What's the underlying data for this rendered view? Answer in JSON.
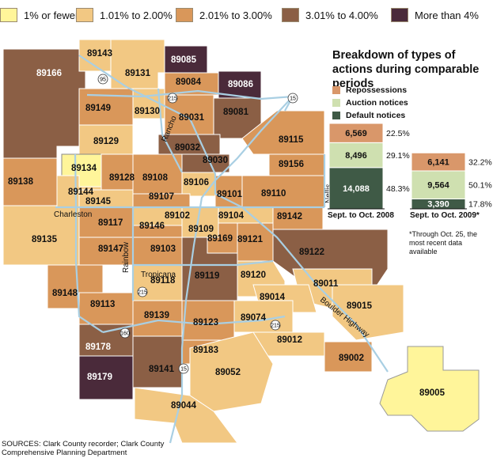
{
  "legend": [
    {
      "label": "1% or fewer",
      "color": "#fff59a"
    },
    {
      "label": "1.01% to 2.00%",
      "color": "#f2c883"
    },
    {
      "label": "2.01% to 3.00%",
      "color": "#d9975a"
    },
    {
      "label": "3.01% to 4.00%",
      "color": "#8b5f45"
    },
    {
      "label": "More than 4%",
      "color": "#4a2a3a"
    }
  ],
  "zip_codes": [
    {
      "zip": "89143",
      "class": "1.01% to 2.00%"
    },
    {
      "zip": "89085",
      "class": "More than 4%"
    },
    {
      "zip": "89166",
      "class": "3.01% to 4.00%"
    },
    {
      "zip": "89131",
      "class": "1.01% to 2.00%"
    },
    {
      "zip": "89084",
      "class": "2.01% to 3.00%"
    },
    {
      "zip": "89086",
      "class": "More than 4%"
    },
    {
      "zip": "89149",
      "class": "2.01% to 3.00%"
    },
    {
      "zip": "89130",
      "class": "1.01% to 2.00%"
    },
    {
      "zip": "89031",
      "class": "2.01% to 3.00%"
    },
    {
      "zip": "89081",
      "class": "3.01% to 4.00%"
    },
    {
      "zip": "89129",
      "class": "1.01% to 2.00%"
    },
    {
      "zip": "89032",
      "class": "3.01% to 4.00%"
    },
    {
      "zip": "89115",
      "class": "2.01% to 3.00%"
    },
    {
      "zip": "89134",
      "class": "1% or fewer"
    },
    {
      "zip": "89030",
      "class": "3.01% to 4.00%"
    },
    {
      "zip": "89156",
      "class": "2.01% to 3.00%"
    },
    {
      "zip": "89138",
      "class": "2.01% to 3.00%"
    },
    {
      "zip": "89144",
      "class": "1.01% to 2.00%"
    },
    {
      "zip": "89128",
      "class": "2.01% to 3.00%"
    },
    {
      "zip": "89108",
      "class": "2.01% to 3.00%"
    },
    {
      "zip": "89106",
      "class": "1.01% to 2.00%"
    },
    {
      "zip": "89110",
      "class": "2.01% to 3.00%"
    },
    {
      "zip": "89107",
      "class": "2.01% to 3.00%"
    },
    {
      "zip": "89101",
      "class": "2.01% to 3.00%"
    },
    {
      "zip": "89145",
      "class": "1.01% to 2.00%"
    },
    {
      "zip": "89102",
      "class": "1.01% to 2.00%"
    },
    {
      "zip": "89104",
      "class": "1.01% to 2.00%"
    },
    {
      "zip": "89142",
      "class": "2.01% to 3.00%"
    },
    {
      "zip": "89117",
      "class": "2.01% to 3.00%"
    },
    {
      "zip": "89146",
      "class": "2.01% to 3.00%"
    },
    {
      "zip": "89109",
      "class": "1.01% to 2.00%"
    },
    {
      "zip": "89169",
      "class": "2.01% to 3.00%"
    },
    {
      "zip": "89121",
      "class": "2.01% to 3.00%"
    },
    {
      "zip": "89135",
      "class": "1.01% to 2.00%"
    },
    {
      "zip": "89147",
      "class": "2.01% to 3.00%"
    },
    {
      "zip": "89103",
      "class": "2.01% to 3.00%"
    },
    {
      "zip": "89122",
      "class": "3.01% to 4.00%"
    },
    {
      "zip": "89119",
      "class": "3.01% to 4.00%"
    },
    {
      "zip": "89120",
      "class": "1.01% to 2.00%"
    },
    {
      "zip": "89118",
      "class": "1.01% to 2.00%"
    },
    {
      "zip": "89011",
      "class": "1.01% to 2.00%"
    },
    {
      "zip": "89148",
      "class": "2.01% to 3.00%"
    },
    {
      "zip": "89014",
      "class": "1.01% to 2.00%"
    },
    {
      "zip": "89015",
      "class": "1.01% to 2.00%"
    },
    {
      "zip": "89113",
      "class": "2.01% to 3.00%"
    },
    {
      "zip": "89139",
      "class": "2.01% to 3.00%"
    },
    {
      "zip": "89123",
      "class": "2.01% to 3.00%"
    },
    {
      "zip": "89074",
      "class": "1.01% to 2.00%"
    },
    {
      "zip": "89012",
      "class": "1.01% to 2.00%"
    },
    {
      "zip": "89178",
      "class": "3.01% to 4.00%"
    },
    {
      "zip": "89183",
      "class": "2.01% to 3.00%"
    },
    {
      "zip": "89002",
      "class": "2.01% to 3.00%"
    },
    {
      "zip": "89141",
      "class": "3.01% to 4.00%"
    },
    {
      "zip": "89052",
      "class": "1.01% to 2.00%"
    },
    {
      "zip": "89179",
      "class": "More than 4%"
    },
    {
      "zip": "89005",
      "class": "1% or fewer"
    },
    {
      "zip": "89044",
      "class": "1.01% to 2.00%"
    }
  ],
  "road_labels": [
    "Rancho",
    "Charleston",
    "Rainbow",
    "Tropicana",
    "Nellis",
    "Boulder Highway"
  ],
  "highway_shields": [
    "95",
    "215",
    "15",
    "215",
    "160",
    "215",
    "15"
  ],
  "chart": {
    "title": "Breakdown of types of actions during comparable periods",
    "legend": [
      {
        "label": "Repossessions",
        "color": "#d9976a"
      },
      {
        "label": "Auction notices",
        "color": "#cfe0b0"
      },
      {
        "label": "Default notices",
        "color": "#3f5a46"
      }
    ],
    "periods": [
      {
        "label": "Sept. to Oct. 2008",
        "values": {
          "repossessions": "6,569",
          "auction": "8,496",
          "default": "14,088"
        },
        "percents": {
          "repossessions": "22.5%",
          "auction": "29.1%",
          "default": "48.3%"
        }
      },
      {
        "label": "Sept. to Oct. 2009*",
        "values": {
          "repossessions": "6,141",
          "auction": "9,564",
          "default": "3,390"
        },
        "percents": {
          "repossessions": "32.2%",
          "auction": "50.1%",
          "default": "17.8%"
        }
      }
    ],
    "note": "*Through Oct. 25, the most recent data available"
  },
  "chart_data": {
    "type": "bar",
    "categories": [
      "Sept. to Oct. 2008",
      "Sept. to Oct. 2009*"
    ],
    "series": [
      {
        "name": "Default notices",
        "values": [
          14088,
          3390
        ]
      },
      {
        "name": "Auction notices",
        "values": [
          8496,
          9564
        ]
      },
      {
        "name": "Repossessions",
        "values": [
          6569,
          6141
        ]
      }
    ],
    "title": "Breakdown of types of actions during comparable periods",
    "stacked": true
  },
  "sources": "SOURCES: Clark County recorder; Clark County Comprehensive Planning Department"
}
